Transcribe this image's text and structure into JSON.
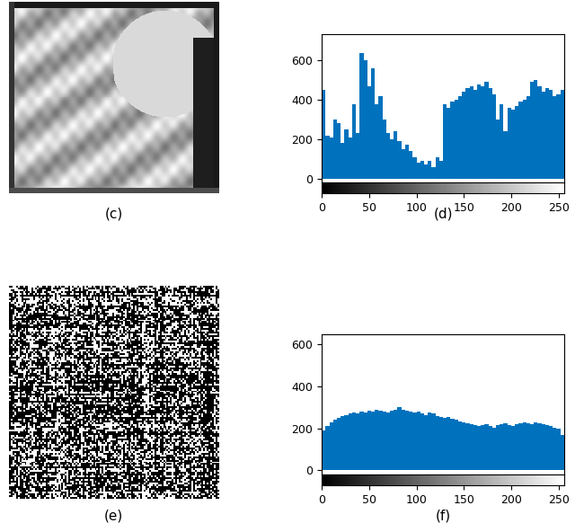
{
  "images": [
    {
      "label": "(c)"
    },
    {
      "label": "(e)"
    }
  ],
  "chart_data": [
    {
      "type": "histogram",
      "title": "(d)",
      "color": "#0072bd",
      "grid": false,
      "bins": [
        0,
        4,
        8,
        12,
        16,
        20,
        24,
        28,
        32,
        36,
        40,
        44,
        48,
        52,
        56,
        60,
        64,
        68,
        72,
        76,
        80,
        84,
        88,
        92,
        96,
        100,
        104,
        108,
        112,
        116,
        120,
        124,
        128,
        132,
        136,
        140,
        144,
        148,
        152,
        156,
        160,
        164,
        168,
        172,
        176,
        180,
        184,
        188,
        192,
        196,
        200,
        204,
        208,
        212,
        216,
        220,
        224,
        228,
        232,
        236,
        240,
        244,
        248,
        252,
        256
      ],
      "counts": [
        450,
        220,
        210,
        300,
        280,
        180,
        250,
        210,
        380,
        230,
        640,
        600,
        470,
        560,
        380,
        420,
        300,
        230,
        200,
        240,
        190,
        150,
        170,
        140,
        110,
        80,
        90,
        70,
        90,
        60,
        110,
        90,
        380,
        360,
        390,
        400,
        420,
        440,
        460,
        470,
        450,
        480,
        470,
        490,
        460,
        430,
        300,
        380,
        240,
        360,
        350,
        370,
        390,
        400,
        420,
        490,
        500,
        470,
        440,
        460,
        450,
        420,
        430,
        450
      ],
      "xlim": [
        0,
        256
      ],
      "xticks": [
        0,
        50,
        100,
        150,
        200,
        250
      ],
      "ylim": [
        -20,
        735
      ],
      "yticks": [
        0,
        200,
        400,
        600
      ]
    },
    {
      "type": "histogram",
      "title": "(f)",
      "color": "#0072bd",
      "grid": false,
      "bins": [
        0,
        4,
        8,
        12,
        16,
        20,
        24,
        28,
        32,
        36,
        40,
        44,
        48,
        52,
        56,
        60,
        64,
        68,
        72,
        76,
        80,
        84,
        88,
        92,
        96,
        100,
        104,
        108,
        112,
        116,
        120,
        124,
        128,
        132,
        136,
        140,
        144,
        148,
        152,
        156,
        160,
        164,
        168,
        172,
        176,
        180,
        184,
        188,
        192,
        196,
        200,
        204,
        208,
        212,
        216,
        220,
        224,
        228,
        232,
        236,
        240,
        244,
        248,
        252,
        256
      ],
      "counts": [
        190,
        210,
        230,
        240,
        250,
        260,
        265,
        270,
        275,
        270,
        280,
        275,
        285,
        280,
        290,
        285,
        280,
        275,
        285,
        290,
        300,
        290,
        285,
        280,
        275,
        280,
        270,
        265,
        275,
        270,
        260,
        255,
        250,
        255,
        245,
        240,
        235,
        230,
        225,
        220,
        215,
        210,
        215,
        220,
        210,
        205,
        215,
        220,
        225,
        215,
        210,
        220,
        225,
        230,
        225,
        220,
        230,
        225,
        220,
        215,
        210,
        205,
        200,
        170
      ],
      "xlim": [
        0,
        256
      ],
      "xticks": [
        0,
        50,
        100,
        150,
        200,
        250
      ],
      "ylim": [
        -20,
        650
      ],
      "yticks": [
        0,
        200,
        400,
        600
      ]
    }
  ]
}
